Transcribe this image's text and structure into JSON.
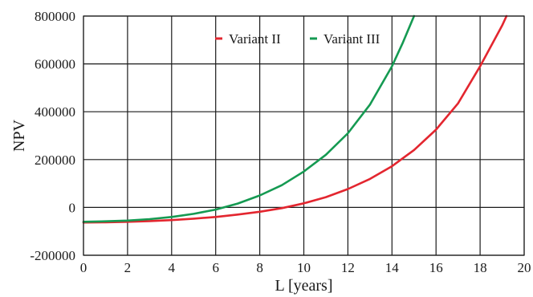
{
  "chart_data": {
    "type": "line",
    "title": "",
    "xlabel": "L [years]",
    "ylabel": "NPV",
    "xlim": [
      0,
      20
    ],
    "ylim": [
      -200000,
      800000
    ],
    "xticks": [
      0,
      2,
      4,
      6,
      8,
      10,
      12,
      14,
      16,
      18,
      20
    ],
    "yticks": [
      -200000,
      0,
      200000,
      400000,
      600000,
      800000
    ],
    "xtick_labels": [
      "0",
      "2",
      "4",
      "6",
      "8",
      "10",
      "12",
      "14",
      "16",
      "18",
      "20"
    ],
    "ytick_labels": [
      "-200000",
      "0",
      "200000",
      "400000",
      "600000",
      "800000"
    ],
    "grid": true,
    "legend_position": "top-right",
    "series": [
      {
        "name": "Variant II",
        "color": "#e3262f",
        "x": [
          0,
          1,
          2,
          3,
          4,
          5,
          6,
          7,
          8,
          9,
          10,
          11,
          12,
          13,
          14,
          15,
          16,
          17,
          18,
          19,
          19.2
        ],
        "y": [
          -63000,
          -62000,
          -60000,
          -57000,
          -53000,
          -47000,
          -40000,
          -30000,
          -18000,
          -3000,
          17000,
          43000,
          77000,
          119000,
          172000,
          240000,
          325000,
          435000,
          590000,
          760000,
          800000
        ]
      },
      {
        "name": "Variant III",
        "color": "#159a52",
        "x": [
          0,
          1,
          2,
          3,
          4,
          5,
          6,
          7,
          8,
          9,
          10,
          11,
          12,
          13,
          14,
          14.5,
          15
        ],
        "y": [
          -60000,
          -58000,
          -55000,
          -49000,
          -40000,
          -27000,
          -9000,
          16000,
          50000,
          93000,
          150000,
          220000,
          310000,
          430000,
          590000,
          690000,
          800000
        ]
      }
    ]
  }
}
